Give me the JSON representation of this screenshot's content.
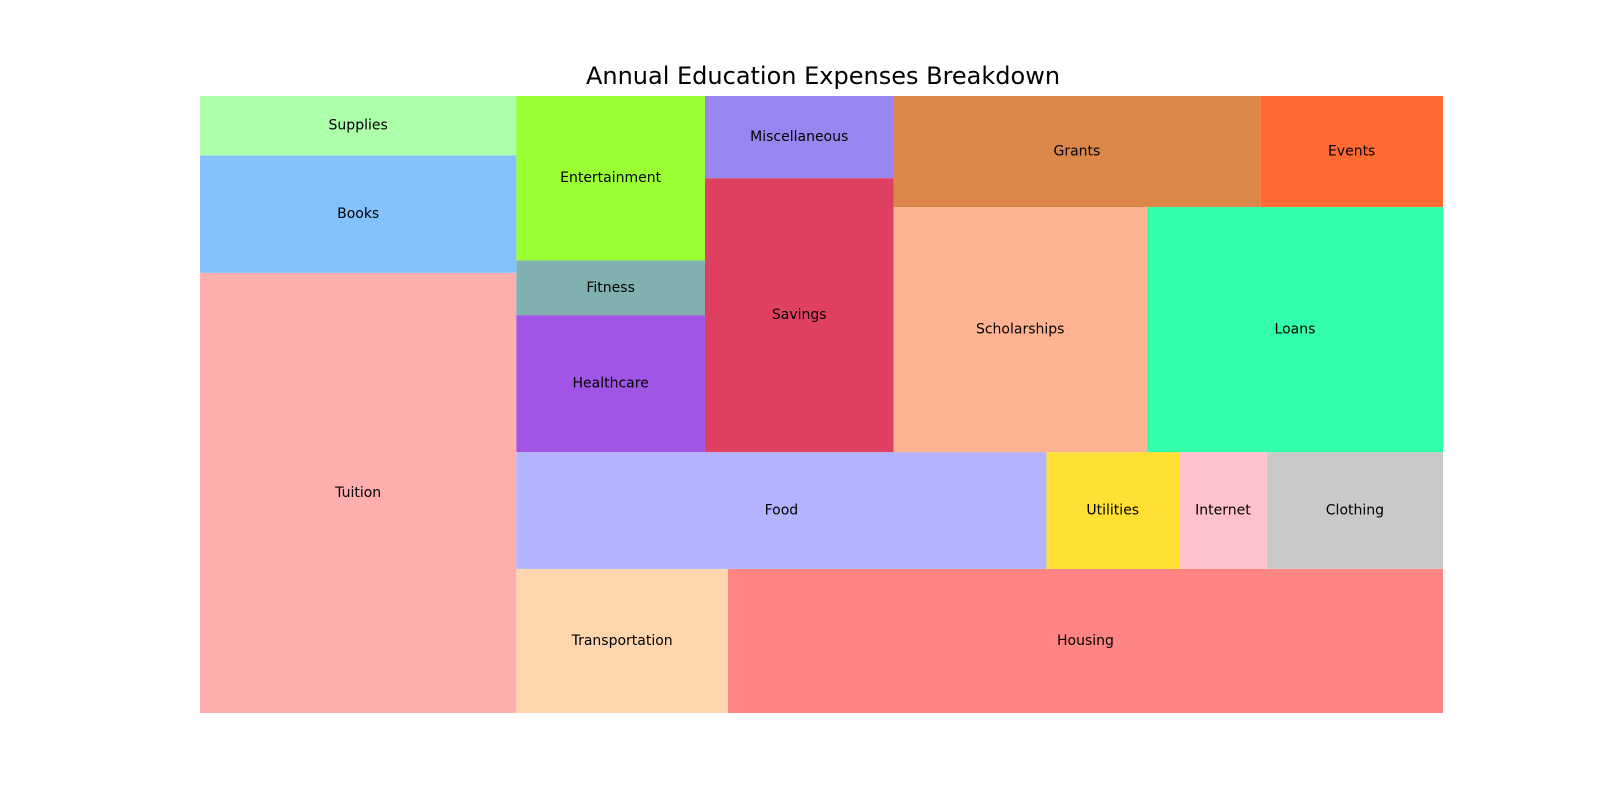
{
  "chart_data": {
    "type": "treemap",
    "title": "Annual Education Expenses Breakdown",
    "labels": [
      "Tuition",
      "Books",
      "Supplies",
      "Transportation",
      "Housing",
      "Food",
      "Utilities",
      "Internet",
      "Clothing",
      "Healthcare",
      "Fitness",
      "Entertainment",
      "Savings",
      "Miscellaneous",
      "Scholarships",
      "Loans",
      "Grants",
      "Events"
    ],
    "values": [
      13127,
      3504,
      1769,
      2874,
      9711,
      5837,
      1461,
      966,
      1940,
      2436,
      973,
      2923,
      4870,
      1461,
      5855,
      6841,
      3840,
      1912
    ],
    "colors": [
      "#ffadad",
      "#84c1ff",
      "#adffaa",
      "#ffd6ad",
      "#ff8484",
      "#b3b3ff",
      "#ffe033",
      "#ffc1cc",
      "#c9c9c9",
      "#a155e6",
      "#80b0b0",
      "#99ff33",
      "#e04060",
      "#9985f0",
      "#ffb392",
      "#33ffaa",
      "#db874a",
      "#ff6a33"
    ]
  }
}
